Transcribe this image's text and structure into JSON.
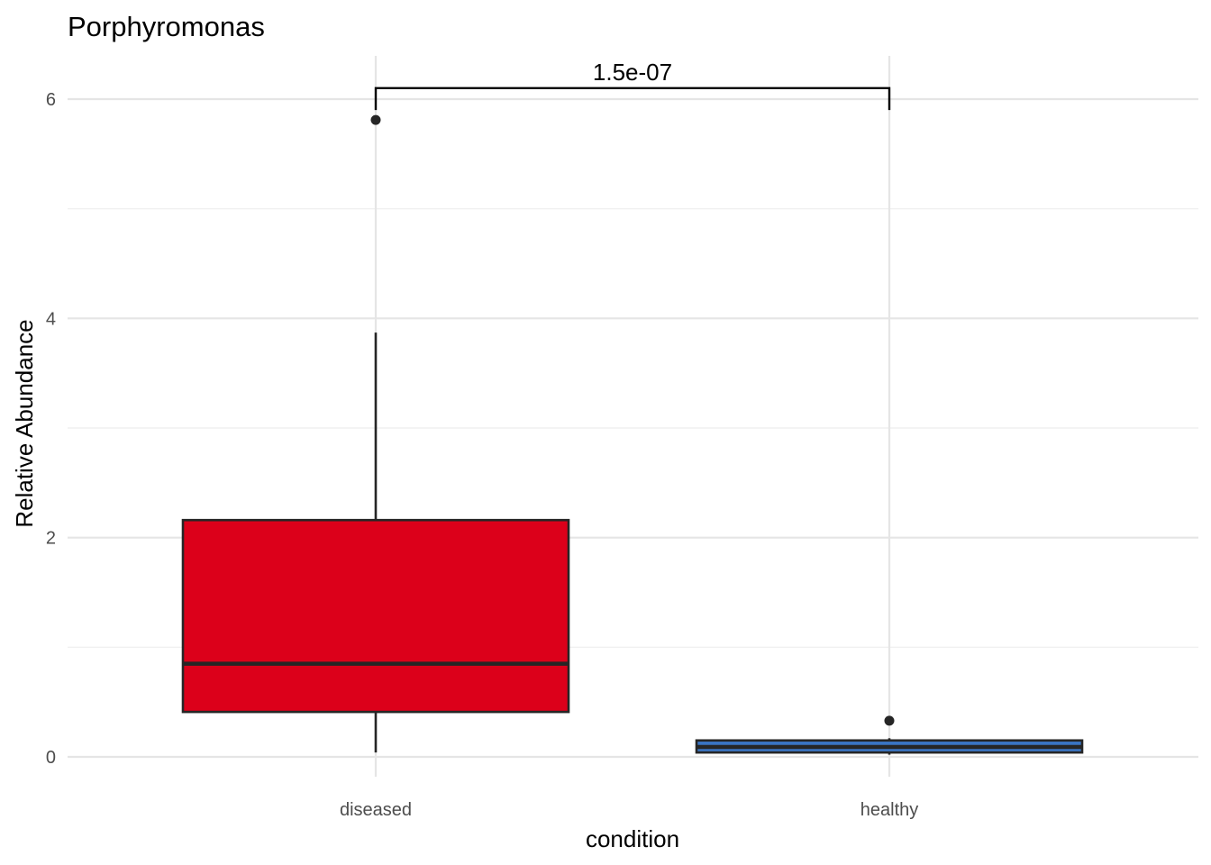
{
  "chart_data": {
    "type": "boxplot",
    "title": "Porphyromonas",
    "xlabel": "condition",
    "ylabel": "Relative Abundance",
    "categories": [
      "diseased",
      "healthy"
    ],
    "ylim": [
      -0.2,
      6.4
    ],
    "yticks": [
      0,
      2,
      4,
      6
    ],
    "yticklabels": [
      "0",
      "2",
      "4",
      "6"
    ],
    "grid": true,
    "legend": "none",
    "boxes": [
      {
        "category": "diseased",
        "fill": "#dc001a",
        "whisker_low": 0.04,
        "q1": 0.41,
        "median": 0.85,
        "q3": 2.16,
        "whisker_high": 3.87,
        "outliers": [
          5.81
        ]
      },
      {
        "category": "healthy",
        "fill": "#3a75c4",
        "whisker_low": 0.02,
        "q1": 0.04,
        "median": 0.09,
        "q3": 0.15,
        "whisker_high": 0.17,
        "outliers": [
          0.33
        ]
      }
    ],
    "annotations": [
      {
        "type": "significance-bracket",
        "from": "diseased",
        "to": "healthy",
        "y": 6.1,
        "tip_y": 5.9,
        "label": "1.5e-07"
      }
    ]
  }
}
